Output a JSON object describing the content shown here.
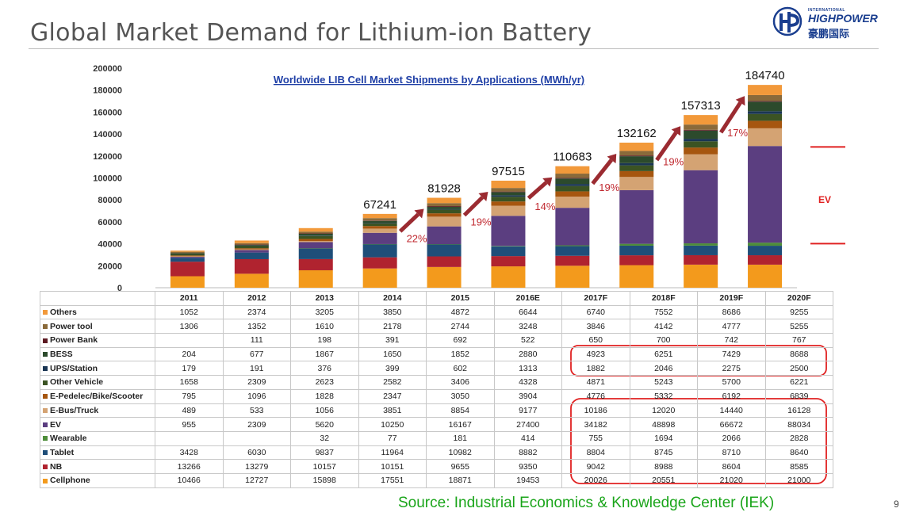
{
  "slide": {
    "title": "Global Market Demand for Lithium-ion Battery",
    "source": "Source: Industrial Economics & Knowledge Center (IEK)",
    "page_number": "9"
  },
  "logo": {
    "top_text": "INTERNATIONAL",
    "main_text": "HIGHPOWER",
    "cn_text": "豪鹏国际"
  },
  "chart_data": {
    "type": "bar",
    "stacked": true,
    "title": "Worldwide LIB Cell Market Shipments by Applications (MWh/yr)",
    "categories": [
      "2011",
      "2012",
      "2013",
      "2014",
      "2015",
      "2016E",
      "2017F",
      "2018F",
      "2019F",
      "2020F"
    ],
    "ylim": [
      0,
      200000
    ],
    "yticks": [
      0,
      20000,
      40000,
      60000,
      80000,
      100000,
      120000,
      140000,
      160000,
      180000,
      200000
    ],
    "totals": [
      null,
      null,
      null,
      67241,
      81928,
      97515,
      110683,
      132162,
      157313,
      184740
    ],
    "growth_labels": [
      "22%",
      "19%",
      "14%",
      "19%",
      "19%",
      "17%"
    ],
    "ev_label": "EV",
    "series": [
      {
        "name": "Cellphone",
        "color": "#f39a1c",
        "values": [
          10466,
          12727,
          15898,
          17551,
          18871,
          19453,
          20026,
          20551,
          21020,
          21000
        ]
      },
      {
        "name": "NB",
        "color": "#b0232f",
        "values": [
          13266,
          13279,
          10157,
          10151,
          9655,
          9350,
          9042,
          8988,
          8604,
          8585
        ]
      },
      {
        "name": "Tablet",
        "color": "#1f4e79",
        "values": [
          3428,
          6030,
          9837,
          11964,
          10982,
          8882,
          8804,
          8745,
          8710,
          8640
        ]
      },
      {
        "name": "Wearable",
        "color": "#4e8d3a",
        "values": [
          null,
          null,
          32,
          77,
          181,
          414,
          755,
          1694,
          2066,
          2828
        ]
      },
      {
        "name": "EV",
        "color": "#5b3e80",
        "values": [
          955,
          2309,
          5620,
          10250,
          16167,
          27400,
          34182,
          48898,
          66672,
          88034
        ]
      },
      {
        "name": "E-Bus/Truck",
        "color": "#d4a373",
        "values": [
          489,
          533,
          1056,
          3851,
          8854,
          9177,
          10186,
          12020,
          14440,
          16128
        ]
      },
      {
        "name": "E-Pedelec/Bike/Scooter",
        "color": "#a6560f",
        "values": [
          795,
          1096,
          1828,
          2347,
          3050,
          3904,
          4776,
          5332,
          6192,
          6839
        ]
      },
      {
        "name": "Other Vehicle",
        "color": "#3b5323",
        "values": [
          1658,
          2309,
          2623,
          2582,
          3406,
          4328,
          4871,
          5243,
          5700,
          6221
        ]
      },
      {
        "name": "UPS/Station",
        "color": "#1a3553",
        "values": [
          179,
          191,
          376,
          399,
          602,
          1313,
          1882,
          2046,
          2275,
          2500
        ]
      },
      {
        "name": "BESS",
        "color": "#2c4a2c",
        "values": [
          204,
          677,
          1867,
          1650,
          1852,
          2880,
          4923,
          6251,
          7429,
          8688
        ]
      },
      {
        "name": "Power Bank",
        "color": "#5c1a22",
        "values": [
          null,
          111,
          198,
          391,
          692,
          522,
          650,
          700,
          742,
          767
        ]
      },
      {
        "name": "Power tool",
        "color": "#8a6a3a",
        "values": [
          1306,
          1352,
          1610,
          2178,
          2744,
          3248,
          3846,
          4142,
          4777,
          5255
        ]
      },
      {
        "name": "Others",
        "color": "#f2993a",
        "values": [
          1052,
          2374,
          3205,
          3850,
          4872,
          6644,
          6740,
          7552,
          8686,
          9255
        ]
      }
    ]
  }
}
